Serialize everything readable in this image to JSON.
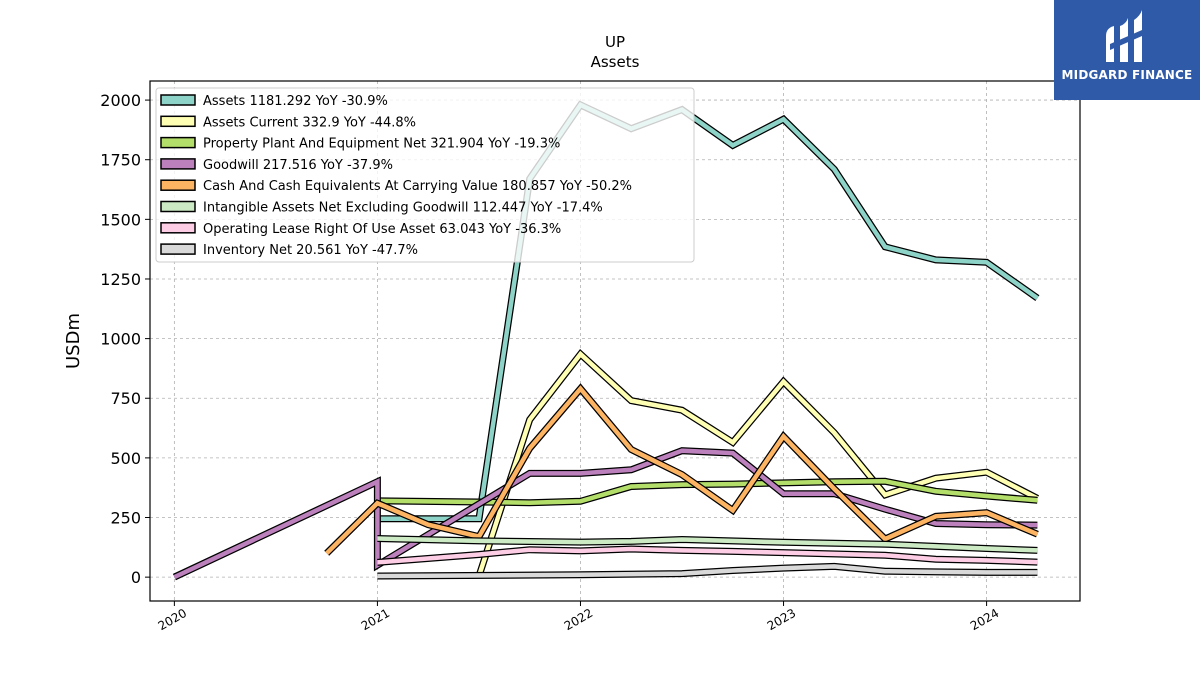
{
  "chart_data": {
    "type": "line",
    "title": "UP",
    "subtitle": "Assets",
    "ylabel": "USDm",
    "xlabel": "",
    "xlim": [
      2019.88,
      2024.46
    ],
    "ylim": [
      -100,
      2080
    ],
    "x_ticks": [
      2020,
      2021,
      2022,
      2023,
      2024
    ],
    "y_ticks": [
      0,
      250,
      500,
      750,
      1000,
      1250,
      1500,
      1750,
      2000
    ],
    "grid": true,
    "legend_position": "top-left",
    "series": [
      {
        "name": "Assets",
        "legend": "Assets  1181.292 YoY -30.9%",
        "color": "#8dd3c7",
        "points": [
          [
            2021.0,
            245
          ],
          [
            2021.5,
            245
          ],
          [
            2021.75,
            1670
          ],
          [
            2022.0,
            1980
          ],
          [
            2022.25,
            1880
          ],
          [
            2022.5,
            1960
          ],
          [
            2022.75,
            1810
          ],
          [
            2023.0,
            1920
          ],
          [
            2023.25,
            1710
          ],
          [
            2023.5,
            1385
          ],
          [
            2023.75,
            1330
          ],
          [
            2024.0,
            1320
          ],
          [
            2024.25,
            1170
          ]
        ]
      },
      {
        "name": "Assets Current",
        "legend": "Assets Current  332.9 YoY -44.8%",
        "color": "#ffffb3",
        "points": [
          [
            2021.5,
            5
          ],
          [
            2021.75,
            660
          ],
          [
            2022.0,
            935
          ],
          [
            2022.25,
            740
          ],
          [
            2022.5,
            700
          ],
          [
            2022.75,
            565
          ],
          [
            2023.0,
            820
          ],
          [
            2023.25,
            605
          ],
          [
            2023.5,
            345
          ],
          [
            2023.75,
            415
          ],
          [
            2024.0,
            440
          ],
          [
            2024.25,
            330
          ]
        ]
      },
      {
        "name": "Property Plant And Equipment Net",
        "legend": "Property Plant And Equipment Net  321.904 YoY -19.3%",
        "color": "#b3de69",
        "points": [
          [
            2021.0,
            320
          ],
          [
            2021.5,
            315
          ],
          [
            2021.75,
            312
          ],
          [
            2022.0,
            318
          ],
          [
            2022.25,
            380
          ],
          [
            2022.5,
            388
          ],
          [
            2022.75,
            390
          ],
          [
            2023.0,
            395
          ],
          [
            2023.25,
            400
          ],
          [
            2023.5,
            402
          ],
          [
            2023.75,
            360
          ],
          [
            2024.0,
            340
          ],
          [
            2024.25,
            322
          ]
        ]
      },
      {
        "name": "Goodwill",
        "legend": "Goodwill  217.516 YoY -37.9%",
        "color": "#bc80bd",
        "points": [
          [
            2020.0,
            0
          ],
          [
            2021.0,
            400
          ],
          [
            2021.0,
            50
          ],
          [
            2021.75,
            435
          ],
          [
            2022.0,
            435
          ],
          [
            2022.25,
            450
          ],
          [
            2022.5,
            530
          ],
          [
            2022.75,
            520
          ],
          [
            2023.0,
            350
          ],
          [
            2023.25,
            350
          ],
          [
            2023.5,
            285
          ],
          [
            2023.75,
            225
          ],
          [
            2024.0,
            220
          ],
          [
            2024.25,
            218
          ]
        ]
      },
      {
        "name": "Cash And Cash Equivalents At Carrying Value",
        "legend": "Cash And Cash Equivalents At Carrying Value  180.857 YoY -50.2%",
        "color": "#fdb462",
        "points": [
          [
            2020.75,
            100
          ],
          [
            2021.0,
            310
          ],
          [
            2021.25,
            220
          ],
          [
            2021.5,
            170
          ],
          [
            2021.75,
            540
          ],
          [
            2022.0,
            790
          ],
          [
            2022.25,
            535
          ],
          [
            2022.5,
            430
          ],
          [
            2022.75,
            280
          ],
          [
            2023.0,
            590
          ],
          [
            2023.25,
            370
          ],
          [
            2023.5,
            160
          ],
          [
            2023.75,
            255
          ],
          [
            2024.0,
            270
          ],
          [
            2024.25,
            180
          ]
        ]
      },
      {
        "name": "Intangible Assets Net Excluding Goodwill",
        "legend": "Intangible Assets Net Excluding Goodwill  112.447 YoY -17.4%",
        "color": "#ccebc5",
        "points": [
          [
            2021.0,
            162
          ],
          [
            2021.5,
            152
          ],
          [
            2022.0,
            147
          ],
          [
            2022.25,
            150
          ],
          [
            2022.5,
            158
          ],
          [
            2023.0,
            146
          ],
          [
            2023.5,
            138
          ],
          [
            2024.0,
            120
          ],
          [
            2024.25,
            112
          ]
        ]
      },
      {
        "name": "Operating Lease Right Of Use Asset",
        "legend": "Operating Lease Right Of Use Asset  63.043 YoY -36.3%",
        "color": "#fccde5",
        "points": [
          [
            2021.0,
            62
          ],
          [
            2021.5,
            95
          ],
          [
            2021.75,
            115
          ],
          [
            2022.0,
            110
          ],
          [
            2022.25,
            118
          ],
          [
            2022.5,
            112
          ],
          [
            2022.75,
            108
          ],
          [
            2023.0,
            103
          ],
          [
            2023.5,
            92
          ],
          [
            2023.75,
            75
          ],
          [
            2024.0,
            70
          ],
          [
            2024.25,
            63
          ]
        ]
      },
      {
        "name": "Inventory Net",
        "legend": "Inventory Net  20.561 YoY -47.7%",
        "color": "#d9d9d9",
        "points": [
          [
            2021.0,
            5
          ],
          [
            2022.0,
            10
          ],
          [
            2022.5,
            15
          ],
          [
            2022.75,
            28
          ],
          [
            2023.0,
            38
          ],
          [
            2023.25,
            45
          ],
          [
            2023.5,
            25
          ],
          [
            2023.75,
            22
          ],
          [
            2024.0,
            20
          ],
          [
            2024.25,
            20
          ]
        ]
      }
    ]
  },
  "logo": {
    "text": "MIDGARD FINANCE",
    "background": "#2f5aa8"
  }
}
